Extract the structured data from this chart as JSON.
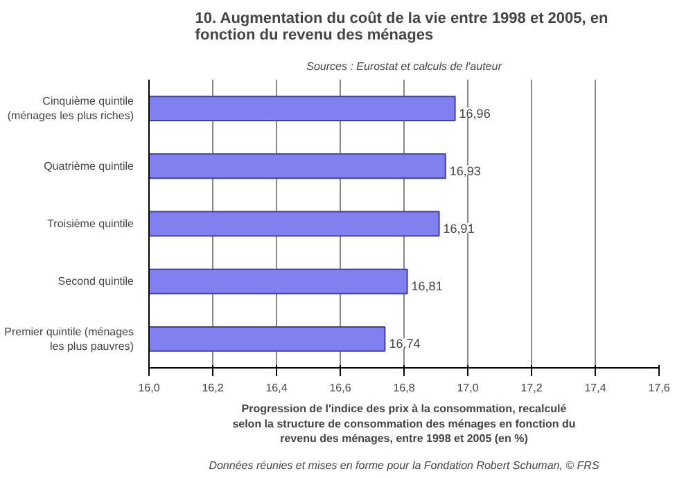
{
  "chart_data": {
    "type": "bar",
    "orientation": "horizontal",
    "title": "10.  Augmentation du coût de la vie entre 1998 et 2005, en fonction du revenu des ménages",
    "subtitle": "Sources : Eurostat et calculs de l'auteur",
    "categories": [
      "Cinquième quintile (ménages les plus riches)",
      "Quatrième quintile",
      "Troisième quintile",
      "Second quintile",
      "Premier quintile (ménages les plus pauvres)"
    ],
    "values": [
      16.96,
      16.93,
      16.91,
      16.81,
      16.74
    ],
    "value_labels": [
      "16,96",
      "16,93",
      "16,91",
      "16,81",
      "16,74"
    ],
    "color": "#8080f0",
    "xlim": [
      16.0,
      17.6
    ],
    "xticks": [
      {
        "value": 16.0,
        "label": "16,0"
      },
      {
        "value": 16.2,
        "label": "16,2"
      },
      {
        "value": 16.4,
        "label": "16,4"
      },
      {
        "value": 16.6,
        "label": "16,6"
      },
      {
        "value": 16.8,
        "label": "16,8"
      },
      {
        "value": 17.0,
        "label": "17,0"
      },
      {
        "value": 17.2,
        "label": "17,2"
      },
      {
        "value": 17.4,
        "label": "17,4"
      },
      {
        "value": 17.6,
        "label": "17,6"
      }
    ],
    "xlabel": "Progression de l'indice des prix à la consommation, recalculé selon la structure de consommation des ménages en fonction du revenu des ménages, entre 1998 et 2005 (en %)",
    "grid": "x",
    "annotations": [
      "Données réunies et mises en forme pour la Fondation Robert Schuman, © FRS"
    ]
  }
}
